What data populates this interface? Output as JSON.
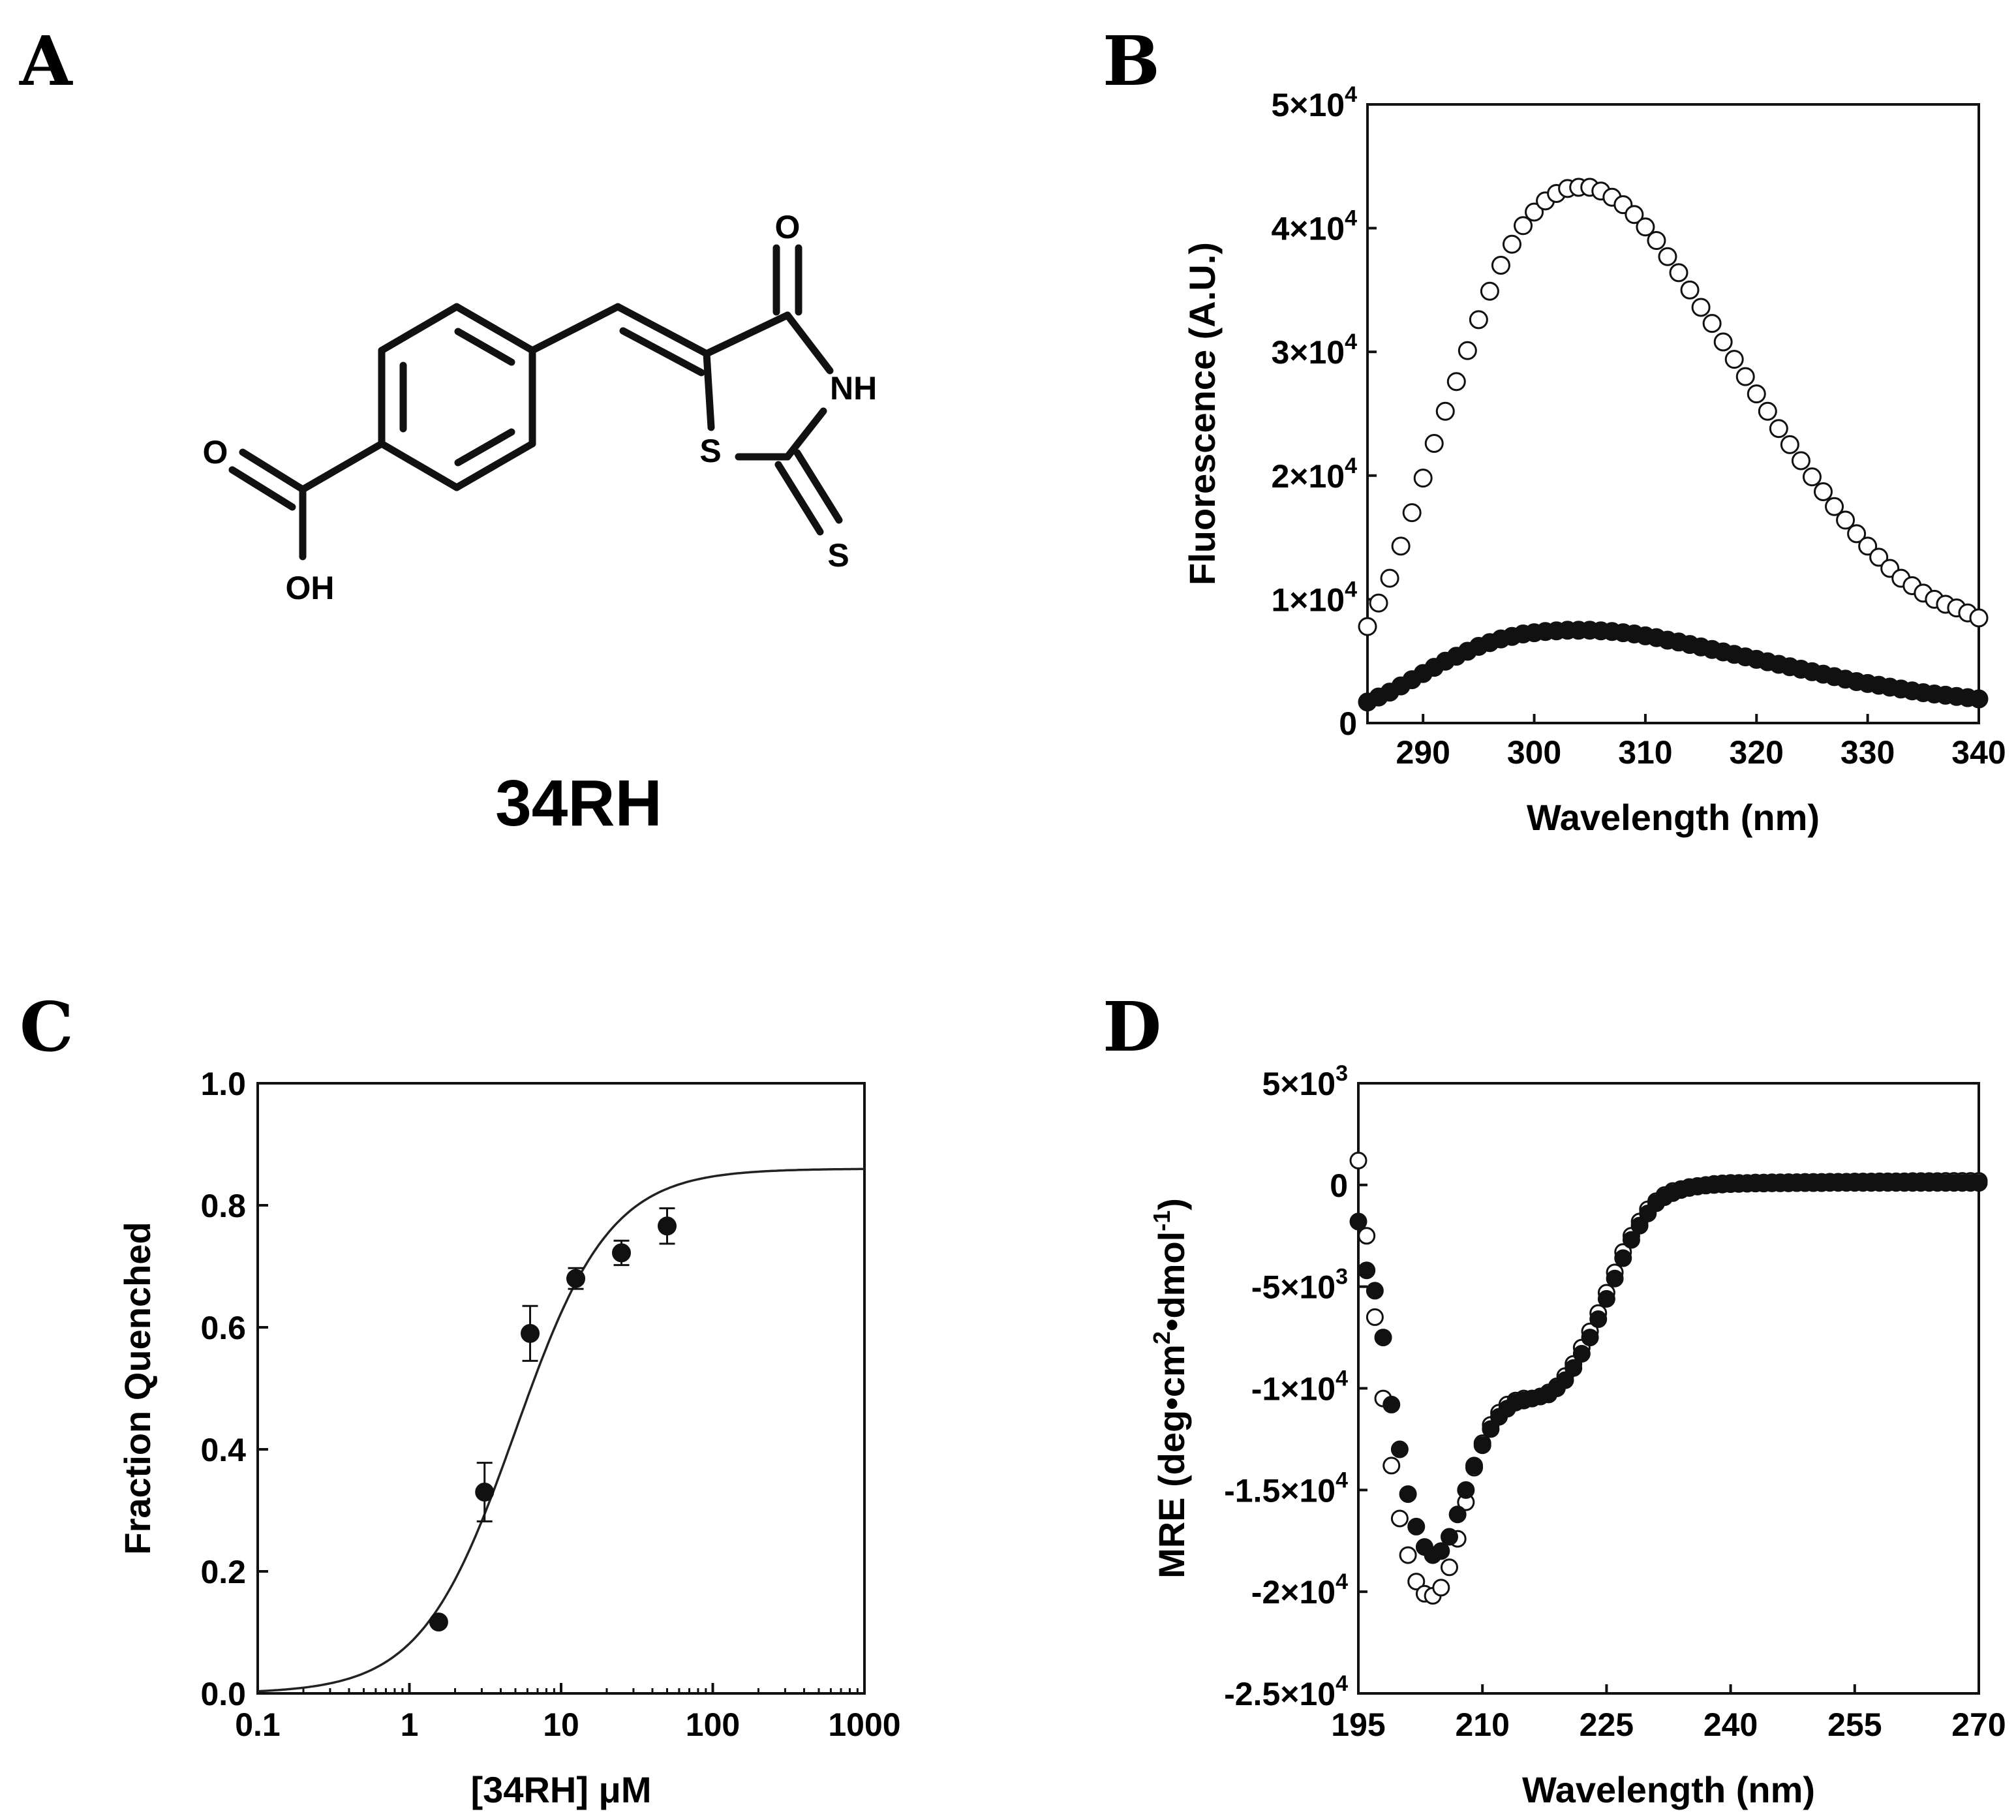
{
  "panels": [
    {
      "id": "A",
      "label": "A"
    },
    {
      "id": "B",
      "label": "B"
    },
    {
      "id": "C",
      "label": "C"
    },
    {
      "id": "D",
      "label": "D"
    }
  ],
  "molecule": {
    "name": "34RH",
    "atoms": {
      "O_carbonyl": "O",
      "NH": "NH",
      "S_ring": "S",
      "S_thione": "S",
      "O_acid": "O",
      "OH": "OH"
    }
  },
  "chart_data": [
    {
      "panel": "B",
      "type": "scatter",
      "title": "",
      "xlabel": "Wavelength (nm)",
      "ylabel": "Fluorescence (A.U.)",
      "xlim": [
        285,
        340
      ],
      "ylim": [
        0,
        50000
      ],
      "xticks": [
        290,
        300,
        310,
        320,
        330,
        340
      ],
      "xtick_labels": [
        "290",
        "300",
        "310",
        "320",
        "330",
        "340"
      ],
      "yticks": [
        0,
        10000,
        20000,
        30000,
        40000,
        50000
      ],
      "ytick_labels": [
        {
          "base": "0",
          "exp": ""
        },
        {
          "base": "1×10",
          "exp": "4"
        },
        {
          "base": "2×10",
          "exp": "4"
        },
        {
          "base": "3×10",
          "exp": "4"
        },
        {
          "base": "4×10",
          "exp": "4"
        },
        {
          "base": "5×10",
          "exp": "4"
        }
      ],
      "x_range": {
        "start": 285,
        "stop": 340,
        "step": 1
      },
      "series": [
        {
          "name": "open circles",
          "marker": "open",
          "values": [
            7800,
            9700,
            11700,
            14300,
            17000,
            19800,
            22600,
            25200,
            27600,
            30100,
            32600,
            34900,
            37000,
            38700,
            40200,
            41300,
            42200,
            42800,
            43200,
            43300,
            43300,
            43000,
            42500,
            41900,
            41100,
            40100,
            39000,
            37700,
            36400,
            35000,
            33600,
            32300,
            30800,
            29400,
            28000,
            26600,
            25200,
            23800,
            22500,
            21200,
            19900,
            18700,
            17500,
            16400,
            15300,
            14300,
            13400,
            12500,
            11700,
            11100,
            10500,
            10000,
            9600,
            9300,
            8900,
            8500
          ]
        },
        {
          "name": "filled circles",
          "marker": "filled",
          "values": [
            1700,
            2100,
            2500,
            3000,
            3500,
            4000,
            4500,
            5000,
            5400,
            5800,
            6200,
            6500,
            6800,
            7000,
            7200,
            7300,
            7400,
            7450,
            7500,
            7500,
            7500,
            7450,
            7400,
            7300,
            7200,
            7050,
            6900,
            6700,
            6550,
            6350,
            6150,
            5950,
            5750,
            5550,
            5350,
            5150,
            4950,
            4750,
            4550,
            4350,
            4150,
            3950,
            3750,
            3550,
            3350,
            3200,
            3050,
            2900,
            2750,
            2600,
            2450,
            2350,
            2250,
            2150,
            2050,
            1950
          ]
        }
      ]
    },
    {
      "panel": "C",
      "type": "scatter",
      "title": "",
      "xlabel": "[34RH] μM",
      "ylabel": "Fraction Quenched",
      "xscale": "log",
      "xlim": [
        0.1,
        1000
      ],
      "ylim": [
        0,
        1.0
      ],
      "xticks": [
        0.1,
        1,
        10,
        100,
        1000
      ],
      "xtick_labels": [
        "0.1",
        "1",
        "10",
        "100",
        "1000"
      ],
      "yticks": [
        0,
        0.2,
        0.4,
        0.6,
        0.8,
        1.0
      ],
      "ytick_labels": [
        "0.0",
        "0.2",
        "0.4",
        "0.6",
        "0.8",
        "1.0"
      ],
      "points": [
        {
          "x": 1.56,
          "y": 0.117,
          "err": 0
        },
        {
          "x": 3.13,
          "y": 0.33,
          "err": 0.048
        },
        {
          "x": 6.25,
          "y": 0.59,
          "err": 0.045
        },
        {
          "x": 12.5,
          "y": 0.68,
          "err": 0.017
        },
        {
          "x": 25,
          "y": 0.722,
          "err": 0.02
        },
        {
          "x": 50,
          "y": 0.766,
          "err": 0.029
        }
      ],
      "fit": {
        "model": "hill",
        "bottom": 0,
        "top": 0.86,
        "ec50": 5.0,
        "hill": 1.4
      }
    },
    {
      "panel": "D",
      "type": "scatter",
      "title": "",
      "xlabel": "Wavelength (nm)",
      "ylabel": "MRE (deg•cm²•dmol⁻¹)",
      "ylabel_parts": {
        "main": "MRE (deg•cm",
        "sup1": "2",
        "mid": "•dmol",
        "sup2": "-1",
        "end": ")"
      },
      "xlim": [
        195,
        270
      ],
      "ylim": [
        -25000,
        5000
      ],
      "xticks": [
        195,
        210,
        225,
        240,
        255,
        270
      ],
      "xtick_labels": [
        "195",
        "210",
        "225",
        "240",
        "255",
        "270"
      ],
      "yticks": [
        5000,
        0,
        -5000,
        -10000,
        -15000,
        -20000,
        -25000
      ],
      "ytick_labels": [
        {
          "base": "5×10",
          "exp": "3"
        },
        {
          "base": "0",
          "exp": ""
        },
        {
          "base": "-5×10",
          "exp": "3"
        },
        {
          "base": "-1×10",
          "exp": "4"
        },
        {
          "base": "-1.5×10",
          "exp": "4"
        },
        {
          "base": "-2×10",
          "exp": "4"
        },
        {
          "base": "-2.5×10",
          "exp": "4"
        }
      ],
      "x_range": {
        "start": 195,
        "stop": 270,
        "step": 1
      },
      "series": [
        {
          "name": "open circles",
          "marker": "open",
          "values": [
            1200,
            -2500,
            -6500,
            -10500,
            -13800,
            -16400,
            -18200,
            -19500,
            -20100,
            -20200,
            -19800,
            -18800,
            -17400,
            -15600,
            -13900,
            -12700,
            -11800,
            -11200,
            -10800,
            -10600,
            -10500,
            -10500,
            -10400,
            -10200,
            -9900,
            -9400,
            -8800,
            -8000,
            -7200,
            -6300,
            -5300,
            -4300,
            -3300,
            -2500,
            -1800,
            -1200,
            -800,
            -500,
            -300,
            -200,
            -100,
            -50,
            0,
            50,
            80,
            100,
            100,
            100,
            120,
            120,
            130,
            130,
            140,
            140,
            150,
            150,
            150,
            160,
            160,
            160,
            170,
            170,
            170,
            180,
            180,
            180,
            180,
            190,
            190,
            190,
            190,
            200,
            200,
            200,
            200,
            200
          ]
        },
        {
          "name": "filled circles",
          "marker": "filled",
          "values": [
            -1800,
            -4200,
            -5200,
            -7500,
            -10800,
            -13000,
            -15200,
            -16800,
            -17800,
            -18200,
            -18000,
            -17300,
            -16200,
            -15000,
            -13800,
            -12800,
            -12000,
            -11400,
            -11000,
            -10700,
            -10600,
            -10500,
            -10400,
            -10300,
            -10000,
            -9600,
            -9000,
            -8300,
            -7500,
            -6600,
            -5600,
            -4600,
            -3600,
            -2700,
            -2000,
            -1400,
            -900,
            -600,
            -400,
            -250,
            -150,
            -80,
            -30,
            0,
            20,
            40,
            50,
            60,
            70,
            70,
            80,
            80,
            80,
            90,
            90,
            90,
            90,
            100,
            100,
            100,
            100,
            100,
            100,
            100,
            100,
            100,
            100,
            100,
            100,
            100,
            100,
            100,
            100,
            100,
            100,
            100
          ]
        }
      ]
    }
  ]
}
